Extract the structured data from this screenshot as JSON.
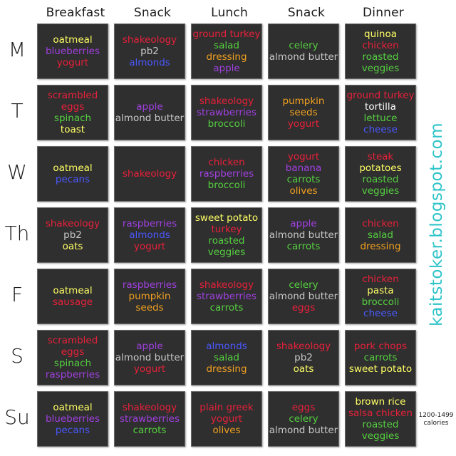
{
  "columns": [
    "Breakfast",
    "Snack",
    "Lunch",
    "Snack",
    "Dinner"
  ],
  "days": [
    "M",
    "T",
    "W",
    "Th",
    "F",
    "S",
    "Su"
  ],
  "colors": {
    "yellow": "#ffff66",
    "purple": "#a040e0",
    "red": "#e8203a",
    "gray": "#c8c8c8",
    "blue": "#4a58ff",
    "green": "#55d040",
    "orange": "#f0a020",
    "white": "#ffffff"
  },
  "grid": [
    [
      [
        [
          "oatmeal",
          "yellow"
        ],
        [
          "blueberries",
          "purple"
        ],
        [
          "yogurt",
          "red"
        ]
      ],
      [
        [
          "shakeology",
          "red"
        ],
        [
          "pb2",
          "gray"
        ],
        [
          "almonds",
          "blue"
        ]
      ],
      [
        [
          "ground turkey",
          "red"
        ],
        [
          "salad",
          "green"
        ],
        [
          "dressing",
          "orange"
        ],
        [
          "apple",
          "purple"
        ]
      ],
      [
        [
          "celery",
          "green"
        ],
        [
          "almond butter",
          "gray"
        ]
      ],
      [
        [
          "quinoa",
          "yellow"
        ],
        [
          "chicken",
          "red"
        ],
        [
          "roasted",
          "green"
        ],
        [
          "veggies",
          "green"
        ]
      ]
    ],
    [
      [
        [
          "scrambled",
          "red"
        ],
        [
          "eggs",
          "red"
        ],
        [
          "spinach",
          "green"
        ],
        [
          "toast",
          "yellow"
        ]
      ],
      [
        [
          "apple",
          "purple"
        ],
        [
          "almond butter",
          "gray"
        ]
      ],
      [
        [
          "shakeology",
          "red"
        ],
        [
          "strawberries",
          "purple"
        ],
        [
          "broccoli",
          "green"
        ]
      ],
      [
        [
          "pumpkin",
          "orange"
        ],
        [
          "seeds",
          "orange"
        ],
        [
          "yogurt",
          "red"
        ]
      ],
      [
        [
          "ground turkey",
          "red"
        ],
        [
          "tortilla",
          "white"
        ],
        [
          "lettuce",
          "green"
        ],
        [
          "cheese",
          "blue"
        ]
      ]
    ],
    [
      [
        [
          "oatmeal",
          "yellow"
        ],
        [
          "pecans",
          "blue"
        ]
      ],
      [
        [
          "shakeology",
          "red"
        ]
      ],
      [
        [
          "chicken",
          "red"
        ],
        [
          "raspberries",
          "purple"
        ],
        [
          "broccoli",
          "green"
        ]
      ],
      [
        [
          "yogurt",
          "red"
        ],
        [
          "banana",
          "purple"
        ],
        [
          "carrots",
          "green"
        ],
        [
          "olives",
          "orange"
        ]
      ],
      [
        [
          "steak",
          "red"
        ],
        [
          "potatoes",
          "yellow"
        ],
        [
          "roasted",
          "green"
        ],
        [
          "veggies",
          "green"
        ]
      ]
    ],
    [
      [
        [
          "shakeology",
          "red"
        ],
        [
          "pb2",
          "gray"
        ],
        [
          "oats",
          "yellow"
        ]
      ],
      [
        [
          "raspberries",
          "purple"
        ],
        [
          "almonds",
          "blue"
        ],
        [
          "yogurt",
          "red"
        ]
      ],
      [
        [
          "sweet potato",
          "yellow"
        ],
        [
          "turkey",
          "red"
        ],
        [
          "roasted",
          "green"
        ],
        [
          "veggies",
          "green"
        ]
      ],
      [
        [
          "apple",
          "purple"
        ],
        [
          "almond butter",
          "gray"
        ],
        [
          "carrots",
          "green"
        ]
      ],
      [
        [
          "chicken",
          "red"
        ],
        [
          "salad",
          "green"
        ],
        [
          "dressing",
          "orange"
        ]
      ]
    ],
    [
      [
        [
          "oatmeal",
          "yellow"
        ],
        [
          "sausage",
          "red"
        ]
      ],
      [
        [
          "raspberries",
          "purple"
        ],
        [
          "pumpkin",
          "orange"
        ],
        [
          "seeds",
          "orange"
        ]
      ],
      [
        [
          "shakeology",
          "red"
        ],
        [
          "strawberries",
          "purple"
        ],
        [
          "carrots",
          "green"
        ]
      ],
      [
        [
          "celery",
          "green"
        ],
        [
          "almond butter",
          "gray"
        ],
        [
          "eggs",
          "red"
        ]
      ],
      [
        [
          "chicken",
          "red"
        ],
        [
          "pasta",
          "yellow"
        ],
        [
          "broccoli",
          "green"
        ],
        [
          "cheese",
          "blue"
        ]
      ]
    ],
    [
      [
        [
          "scrambled",
          "red"
        ],
        [
          "eggs",
          "red"
        ],
        [
          "spinach",
          "green"
        ],
        [
          "raspberries",
          "purple"
        ]
      ],
      [
        [
          "apple",
          "purple"
        ],
        [
          "almond butter",
          "gray"
        ],
        [
          "yogurt",
          "red"
        ]
      ],
      [
        [
          "almonds",
          "blue"
        ],
        [
          "salad",
          "green"
        ],
        [
          "dressing",
          "orange"
        ]
      ],
      [
        [
          "shakeology",
          "red"
        ],
        [
          "pb2",
          "gray"
        ],
        [
          "oats",
          "yellow"
        ]
      ],
      [
        [
          "pork chops",
          "red"
        ],
        [
          "carrots",
          "green"
        ],
        [
          "sweet potato",
          "yellow"
        ]
      ]
    ],
    [
      [
        [
          "oatmeal",
          "yellow"
        ],
        [
          "blueberries",
          "purple"
        ],
        [
          "pecans",
          "blue"
        ]
      ],
      [
        [
          "shakeology",
          "red"
        ],
        [
          "strawberries",
          "purple"
        ],
        [
          "carrots",
          "green"
        ]
      ],
      [
        [
          "plain greek",
          "red"
        ],
        [
          "yogurt",
          "red"
        ],
        [
          "olives",
          "orange"
        ]
      ],
      [
        [
          "eggs",
          "red"
        ],
        [
          "celery",
          "green"
        ],
        [
          "almond butter",
          "gray"
        ]
      ],
      [
        [
          "brown rice",
          "yellow"
        ],
        [
          "salsa chicken",
          "red"
        ],
        [
          "roasted",
          "green"
        ],
        [
          "veggies",
          "green"
        ]
      ]
    ]
  ],
  "blog": "kaitstoker.blogspot.com",
  "calories": [
    "1200-1499",
    "calories"
  ]
}
